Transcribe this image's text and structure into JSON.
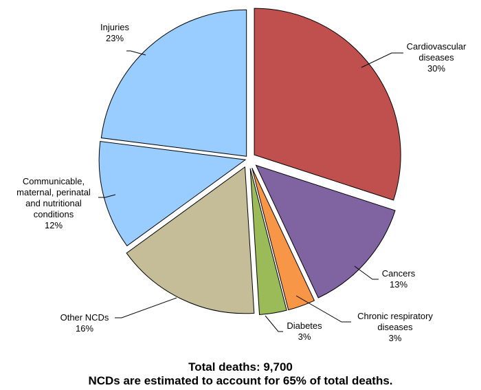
{
  "chart_data": {
    "type": "pie",
    "slices": [
      {
        "name": "Cardiovascular diseases",
        "label_lines": [
          "Cardiovascular",
          "diseases"
        ],
        "value": 30,
        "value_label": "30%",
        "color": "#C0504D"
      },
      {
        "name": "Cancers",
        "label_lines": [
          "Cancers"
        ],
        "value": 13,
        "value_label": "13%",
        "color": "#8064A2"
      },
      {
        "name": "Chronic respiratory diseases",
        "label_lines": [
          "Chronic respiratory",
          "diseases"
        ],
        "value": 3,
        "value_label": "3%",
        "color": "#F79646"
      },
      {
        "name": "Diabetes",
        "label_lines": [
          "Diabetes"
        ],
        "value": 3,
        "value_label": "3%",
        "color": "#9BBB59"
      },
      {
        "name": "Other NCDs",
        "label_lines": [
          "Other NCDs"
        ],
        "value": 16,
        "value_label": "16%",
        "color": "#C4BD97"
      },
      {
        "name": "Communicable, maternal, perinatal and nutritional conditions",
        "label_lines": [
          "Communicable,",
          "maternal, perinatal",
          "and nutritional",
          "conditions"
        ],
        "value": 12,
        "value_label": "12%",
        "color": "#99CCFF"
      },
      {
        "name": "Injuries",
        "label_lines": [
          "Injuries"
        ],
        "value": 23,
        "value_label": "23%",
        "color": "#99CCFF"
      }
    ]
  },
  "footer": {
    "line1": "Total deaths: 9,700",
    "line2": "NCDs are estimated to account for 65% of total deaths."
  }
}
